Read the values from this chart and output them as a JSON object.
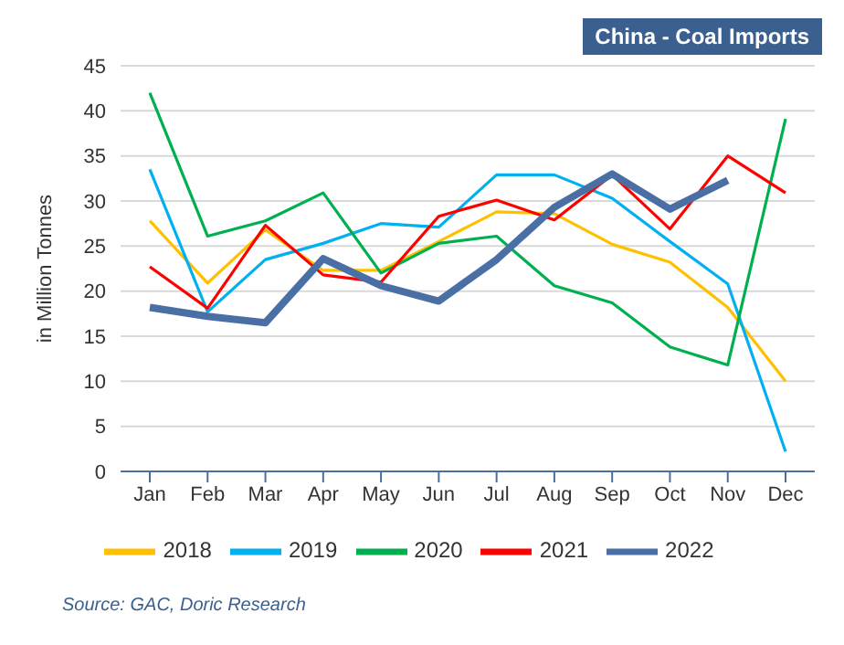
{
  "chart_data": {
    "type": "line",
    "title": "China - Coal Imports",
    "ylabel": "in Million Tonnes",
    "annotations": [
      "Source: GAC, Doric Research"
    ],
    "categories": [
      "Jan",
      "Feb",
      "Mar",
      "Apr",
      "May",
      "Jun",
      "Jul",
      "Aug",
      "Sep",
      "Oct",
      "Nov",
      "Dec"
    ],
    "series": [
      {
        "name": "2018",
        "color": "#ffc000",
        "values": [
          27.8,
          20.9,
          26.8,
          22.3,
          22.3,
          25.5,
          28.8,
          28.6,
          25.2,
          23.2,
          18.2,
          10.0
        ]
      },
      {
        "name": "2019",
        "color": "#00b0f0",
        "values": [
          33.5,
          17.7,
          23.5,
          25.3,
          27.5,
          27.1,
          32.9,
          32.9,
          30.3,
          25.5,
          20.8,
          2.2
        ]
      },
      {
        "name": "2020",
        "color": "#00b050",
        "values": [
          42.0,
          26.1,
          27.8,
          30.9,
          22.0,
          25.3,
          26.1,
          20.6,
          18.7,
          13.8,
          11.8,
          39.1
        ]
      },
      {
        "name": "2021",
        "color": "#ff0000",
        "values": [
          22.7,
          18.1,
          27.3,
          21.8,
          21.0,
          28.3,
          30.1,
          27.9,
          32.9,
          26.9,
          35.0,
          30.9
        ]
      },
      {
        "name": "2022",
        "color": "#4a6fa5",
        "values": [
          18.2,
          17.2,
          16.5,
          23.6,
          20.6,
          18.9,
          23.5,
          29.3,
          33.0,
          29.1,
          32.3,
          null
        ]
      }
    ],
    "ylim": [
      0,
      45
    ],
    "yticks": [
      0,
      5,
      10,
      15,
      20,
      25,
      30,
      35,
      40,
      45
    ],
    "grid": "y",
    "legend": "bottom",
    "marker": "none",
    "line_style": "solid"
  }
}
